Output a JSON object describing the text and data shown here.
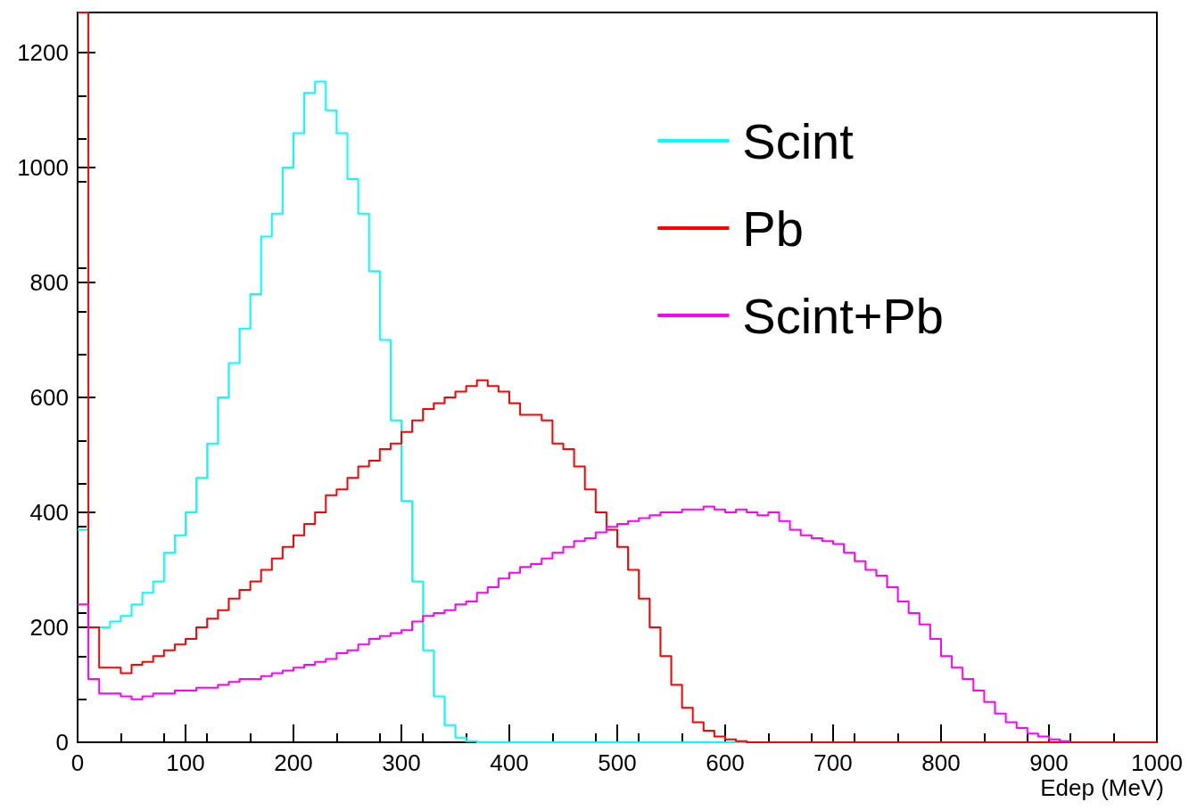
{
  "chart_data": {
    "type": "step",
    "xlabel": "Edep (MeV)",
    "x": [
      0,
      10,
      20,
      30,
      40,
      50,
      60,
      70,
      80,
      90,
      100,
      110,
      120,
      130,
      140,
      150,
      160,
      170,
      180,
      190,
      200,
      210,
      220,
      230,
      240,
      250,
      260,
      270,
      280,
      290,
      300,
      310,
      320,
      330,
      340,
      350,
      360,
      370,
      380,
      390,
      400,
      410,
      420,
      430,
      440,
      450,
      460,
      470,
      480,
      490,
      500,
      510,
      520,
      530,
      540,
      550,
      560,
      570,
      580,
      590,
      600,
      610,
      620,
      630,
      640,
      650,
      660,
      670,
      680,
      690,
      700,
      710,
      720,
      730,
      740,
      750,
      760,
      770,
      780,
      790,
      800,
      810,
      820,
      830,
      840,
      850,
      860,
      870,
      880,
      890,
      900,
      910,
      920,
      930,
      940,
      950,
      960,
      970,
      980,
      990,
      1000
    ],
    "series": [
      {
        "name": "Scint",
        "color": "#00ffff",
        "x": [
          0,
          10,
          20,
          30,
          40,
          50,
          60,
          70,
          80,
          90,
          100,
          110,
          120,
          130,
          140,
          150,
          160,
          170,
          180,
          190,
          200,
          210,
          220,
          230,
          240,
          250,
          260,
          270,
          280,
          290,
          300,
          310,
          320,
          330,
          340,
          350,
          360,
          370,
          380,
          390,
          400,
          410,
          420,
          430,
          440,
          450,
          460,
          470,
          480,
          490,
          500,
          510,
          520,
          530,
          540,
          550,
          560,
          570,
          580,
          590,
          600,
          610,
          620,
          630
        ],
        "values": [
          370,
          200,
          200,
          210,
          220,
          240,
          260,
          280,
          330,
          360,
          400,
          460,
          520,
          600,
          660,
          720,
          780,
          880,
          920,
          1000,
          1060,
          1130,
          1150,
          1100,
          1060,
          980,
          920,
          820,
          700,
          560,
          420,
          280,
          160,
          80,
          30,
          8,
          2,
          0,
          0,
          0,
          0,
          0,
          0,
          0,
          0,
          0,
          0,
          0,
          0,
          0,
          0,
          0,
          0,
          0,
          0,
          0,
          0,
          0,
          0,
          0,
          0,
          0,
          0,
          0
        ]
      },
      {
        "name": "Pb",
        "color": "#ff0000",
        "values": [
          1270,
          200,
          130,
          130,
          120,
          135,
          140,
          150,
          160,
          170,
          180,
          200,
          215,
          230,
          250,
          265,
          280,
          300,
          320,
          340,
          360,
          380,
          400,
          430,
          440,
          460,
          480,
          490,
          510,
          520,
          540,
          560,
          580,
          590,
          600,
          610,
          620,
          630,
          620,
          610,
          590,
          570,
          570,
          560,
          520,
          510,
          480,
          440,
          400,
          370,
          340,
          300,
          250,
          200,
          150,
          100,
          60,
          35,
          20,
          10,
          5,
          2,
          0,
          0,
          0,
          0,
          0,
          0,
          0,
          0,
          0,
          0,
          0,
          0,
          0,
          0,
          0,
          0,
          0,
          0,
          0,
          0,
          0,
          0,
          0,
          0,
          0,
          0,
          0,
          0,
          0,
          0,
          0,
          0,
          0,
          0,
          0,
          0,
          0,
          0,
          0
        ]
      },
      {
        "name": "Scint+Pb",
        "color": "#ff00ff",
        "x": [
          0,
          10,
          20,
          30,
          40,
          50,
          60,
          70,
          80,
          90,
          100,
          110,
          120,
          130,
          140,
          150,
          160,
          170,
          180,
          190,
          200,
          210,
          220,
          230,
          240,
          250,
          260,
          270,
          280,
          290,
          300,
          310,
          320,
          330,
          340,
          350,
          360,
          370,
          380,
          390,
          400,
          410,
          420,
          430,
          440,
          450,
          460,
          470,
          480,
          490,
          500,
          510,
          520,
          530,
          540,
          550,
          560,
          570,
          580,
          590,
          600,
          610,
          620,
          630,
          640,
          650,
          660,
          670,
          680,
          690,
          700,
          710,
          720,
          730,
          740,
          750,
          760,
          770,
          780,
          790,
          800,
          810,
          820,
          830,
          840,
          850,
          860,
          870,
          880,
          890,
          900,
          910,
          920
        ],
        "values": [
          240,
          110,
          85,
          85,
          80,
          75,
          80,
          85,
          85,
          90,
          90,
          95,
          95,
          100,
          105,
          110,
          110,
          115,
          120,
          125,
          130,
          135,
          140,
          145,
          155,
          160,
          170,
          180,
          185,
          190,
          195,
          210,
          220,
          225,
          230,
          240,
          245,
          260,
          270,
          285,
          295,
          305,
          310,
          320,
          330,
          340,
          350,
          355,
          365,
          375,
          380,
          385,
          390,
          395,
          400,
          400,
          405,
          405,
          410,
          405,
          400,
          405,
          400,
          395,
          400,
          385,
          370,
          360,
          355,
          350,
          345,
          330,
          315,
          300,
          290,
          270,
          245,
          225,
          205,
          180,
          150,
          130,
          110,
          90,
          70,
          50,
          35,
          25,
          15,
          10,
          5,
          2,
          1
        ]
      }
    ],
    "xlim": [
      0,
      1000
    ],
    "xticks": [
      0,
      100,
      200,
      300,
      400,
      500,
      600,
      700,
      800,
      900,
      1000
    ],
    "ylim": [
      0,
      1270
    ],
    "yticks": [
      0,
      200,
      400,
      600,
      800,
      1000,
      1200
    ],
    "legend": "top right"
  }
}
